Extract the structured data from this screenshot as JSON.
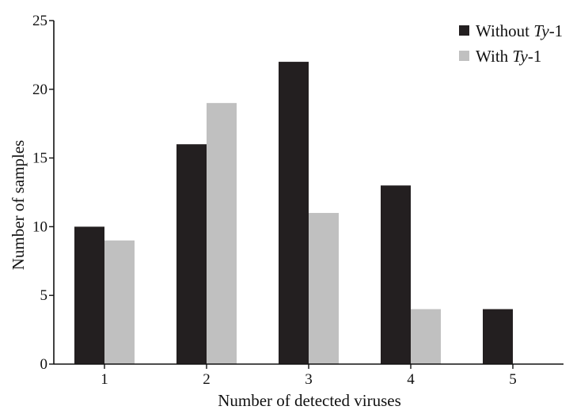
{
  "chart_data": {
    "type": "bar",
    "categories": [
      "1",
      "2",
      "3",
      "4",
      "5"
    ],
    "series": [
      {
        "name": "Without Ty-1",
        "name_prefix": "Without ",
        "name_italic": "Ty",
        "name_suffix": "-1",
        "color": "#231f20",
        "values": [
          10,
          16,
          22,
          13,
          4
        ]
      },
      {
        "name": "With Ty-1",
        "name_prefix": "With ",
        "name_italic": "Ty",
        "name_suffix": "-1",
        "color": "#c0c0c0",
        "values": [
          9,
          19,
          11,
          4,
          0
        ]
      }
    ],
    "title": "",
    "xlabel": "Number of detected viruses",
    "ylabel": "Number of samples",
    "ylim": [
      0,
      25
    ],
    "yticks": [
      "0",
      "5",
      "10",
      "15",
      "20",
      "25"
    ],
    "grid": false,
    "legend_position": "top-right"
  }
}
